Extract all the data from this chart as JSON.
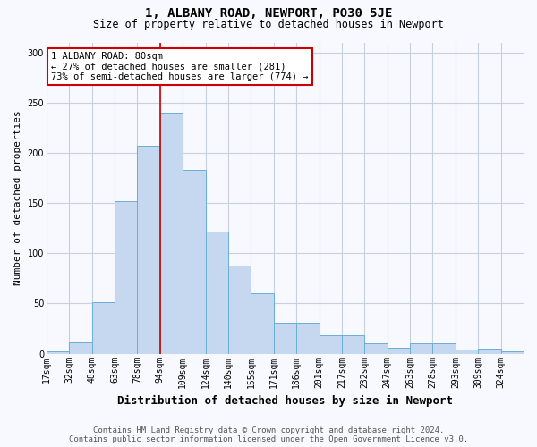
{
  "title": "1, ALBANY ROAD, NEWPORT, PO30 5JE",
  "subtitle": "Size of property relative to detached houses in Newport",
  "xlabel": "Distribution of detached houses by size in Newport",
  "ylabel": "Number of detached properties",
  "footer_line1": "Contains HM Land Registry data © Crown copyright and database right 2024.",
  "footer_line2": "Contains public sector information licensed under the Open Government Licence v3.0.",
  "categories": [
    "17sqm",
    "32sqm",
    "48sqm",
    "63sqm",
    "78sqm",
    "94sqm",
    "109sqm",
    "124sqm",
    "140sqm",
    "155sqm",
    "171sqm",
    "186sqm",
    "201sqm",
    "217sqm",
    "232sqm",
    "247sqm",
    "263sqm",
    "278sqm",
    "293sqm",
    "309sqm",
    "324sqm"
  ],
  "values": [
    2,
    11,
    51,
    152,
    207,
    240,
    183,
    122,
    88,
    60,
    31,
    31,
    18,
    18,
    10,
    6,
    10,
    10,
    4,
    5,
    2
  ],
  "bar_color": "#c5d8ef",
  "bar_edge_color": "#6aaed6",
  "bar_edge_width": 0.7,
  "red_line_x": 5,
  "annotation_text_line1": "1 ALBANY ROAD: 80sqm",
  "annotation_text_line2": "← 27% of detached houses are smaller (281)",
  "annotation_text_line3": "73% of semi-detached houses are larger (774) →",
  "annotation_box_edge_color": "#cc0000",
  "red_line_color": "#cc0000",
  "ylim": [
    0,
    310
  ],
  "yticks": [
    0,
    50,
    100,
    150,
    200,
    250,
    300
  ],
  "background_color": "#f8f8ff",
  "grid_color": "#c8d0e0",
  "title_fontsize": 10,
  "subtitle_fontsize": 8.5,
  "ylabel_fontsize": 8,
  "xlabel_fontsize": 9,
  "tick_fontsize": 7,
  "annot_fontsize": 7.5,
  "footer_fontsize": 6.5
}
